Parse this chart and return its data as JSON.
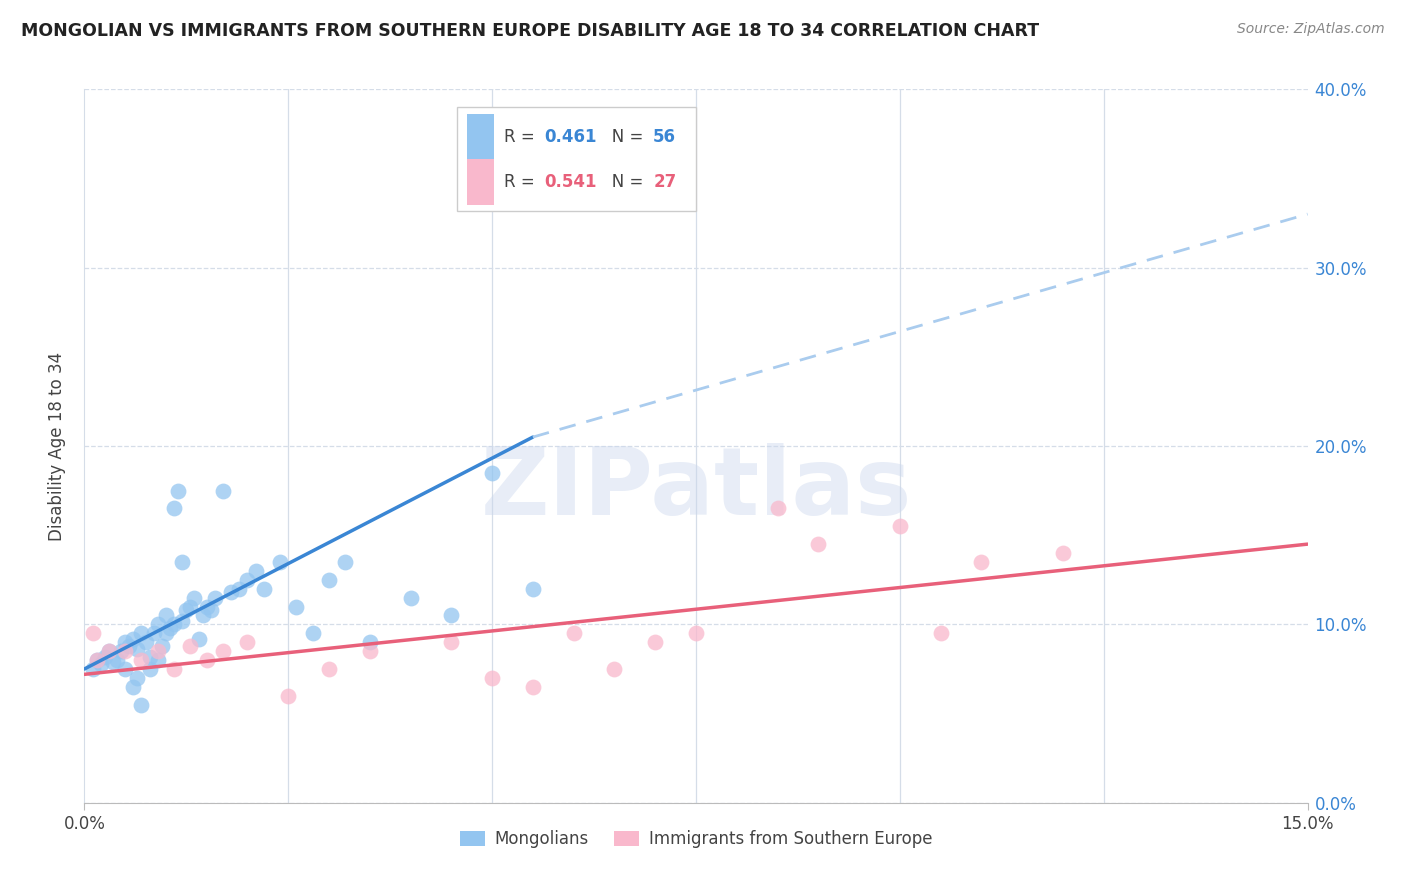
{
  "title": "MONGOLIAN VS IMMIGRANTS FROM SOUTHERN EUROPE DISABILITY AGE 18 TO 34 CORRELATION CHART",
  "source": "Source: ZipAtlas.com",
  "ylabel": "Disability Age 18 to 34",
  "xlim": [
    0.0,
    15.0
  ],
  "ylim": [
    0.0,
    40.0
  ],
  "yticks": [
    0.0,
    10.0,
    20.0,
    30.0,
    40.0
  ],
  "xticks_minor": [
    2.5,
    5.0,
    7.5,
    10.0,
    12.5
  ],
  "legend_blue_r": "0.461",
  "legend_blue_n": "56",
  "legend_pink_r": "0.541",
  "legend_pink_n": "27",
  "legend_blue_label": "Mongolians",
  "legend_pink_label": "Immigrants from Southern Europe",
  "blue_color": "#93c5f0",
  "pink_color": "#f9b8cc",
  "blue_line_color": "#3a86d4",
  "pink_line_color": "#e8607a",
  "dashed_line_color": "#aaccee",
  "watermark": "ZIPatlas",
  "blue_dots_x": [
    0.1,
    0.15,
    0.2,
    0.25,
    0.3,
    0.35,
    0.4,
    0.45,
    0.5,
    0.55,
    0.6,
    0.65,
    0.7,
    0.75,
    0.8,
    0.85,
    0.9,
    0.95,
    1.0,
    1.05,
    1.1,
    1.15,
    1.2,
    1.25,
    1.3,
    1.35,
    1.4,
    1.45,
    1.5,
    1.55,
    1.6,
    1.7,
    1.8,
    1.9,
    2.0,
    2.1,
    2.2,
    2.4,
    2.6,
    2.8,
    3.0,
    3.2,
    3.5,
    4.0,
    4.5,
    5.0,
    5.5,
    0.5,
    0.6,
    0.65,
    0.7,
    0.8,
    0.9,
    1.0,
    1.1,
    1.2
  ],
  "blue_dots_y": [
    7.5,
    8.0,
    7.8,
    8.2,
    8.5,
    7.9,
    8.0,
    8.5,
    9.0,
    8.8,
    9.2,
    8.6,
    9.5,
    9.0,
    8.2,
    9.5,
    10.0,
    8.8,
    10.5,
    9.8,
    10.0,
    17.5,
    10.2,
    10.8,
    11.0,
    11.5,
    9.2,
    10.5,
    11.0,
    10.8,
    11.5,
    17.5,
    11.8,
    12.0,
    12.5,
    13.0,
    12.0,
    13.5,
    11.0,
    9.5,
    12.5,
    13.5,
    9.0,
    11.5,
    10.5,
    18.5,
    12.0,
    7.5,
    6.5,
    7.0,
    5.5,
    7.5,
    8.0,
    9.5,
    16.5,
    13.5
  ],
  "pink_dots_x": [
    0.1,
    0.15,
    0.3,
    0.5,
    0.7,
    0.9,
    1.1,
    1.3,
    1.5,
    1.7,
    2.0,
    2.5,
    3.0,
    3.5,
    4.5,
    5.0,
    5.5,
    6.0,
    6.5,
    7.0,
    7.5,
    8.5,
    9.0,
    10.0,
    10.5,
    11.0,
    12.0
  ],
  "pink_dots_y": [
    9.5,
    8.0,
    8.5,
    8.5,
    8.0,
    8.5,
    7.5,
    8.8,
    8.0,
    8.5,
    9.0,
    6.0,
    7.5,
    8.5,
    9.0,
    7.0,
    6.5,
    9.5,
    7.5,
    9.0,
    9.5,
    16.5,
    14.5,
    15.5,
    9.5,
    13.5,
    14.0
  ],
  "blue_line_x0": 0.0,
  "blue_line_y0": 7.5,
  "blue_line_x1": 5.5,
  "blue_line_y1": 20.5,
  "blue_dash_x0": 5.5,
  "blue_dash_y0": 20.5,
  "blue_dash_x1": 15.0,
  "blue_dash_y1": 33.0,
  "pink_line_x0": 0.0,
  "pink_line_y0": 7.2,
  "pink_line_x1": 15.0,
  "pink_line_y1": 14.5,
  "background_color": "#ffffff",
  "grid_color": "#d5dde8"
}
